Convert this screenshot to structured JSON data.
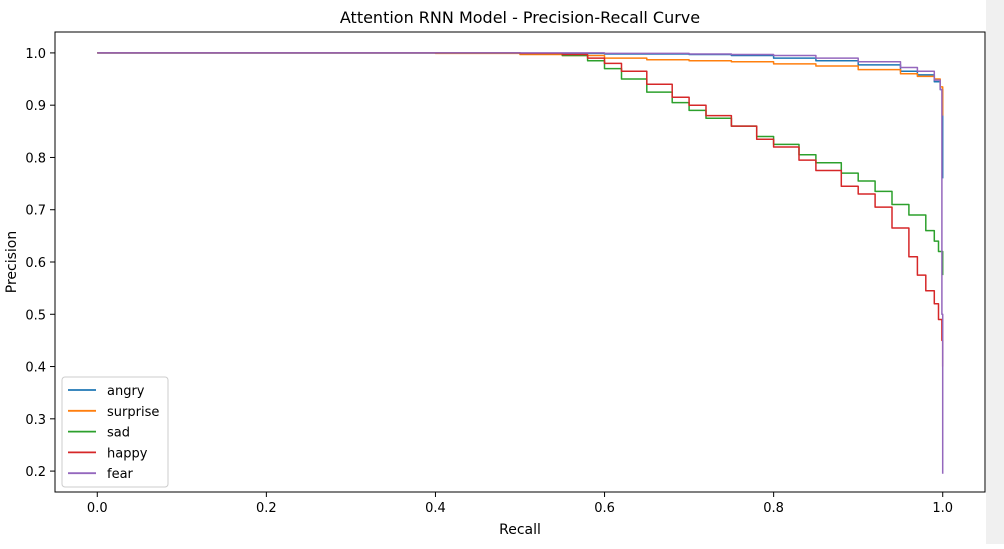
{
  "chart_data": {
    "type": "line",
    "title": "Attention RNN Model - Precision-Recall Curve",
    "xlabel": "Recall",
    "ylabel": "Precision",
    "xlim": [
      -0.05,
      1.05
    ],
    "ylim": [
      0.16,
      1.04
    ],
    "xticks": [
      0.0,
      0.2,
      0.4,
      0.6,
      0.8,
      1.0
    ],
    "yticks": [
      0.2,
      0.3,
      0.4,
      0.5,
      0.6,
      0.7,
      0.8,
      0.9,
      1.0
    ],
    "xtick_labels": [
      "0.0",
      "0.2",
      "0.4",
      "0.6",
      "0.8",
      "1.0"
    ],
    "ytick_labels": [
      "0.2",
      "0.3",
      "0.4",
      "0.5",
      "0.6",
      "0.7",
      "0.8",
      "0.9",
      "1.0"
    ],
    "legend_position": "lower-left",
    "grid": false,
    "series": [
      {
        "name": "angry",
        "color": "#1f77b4",
        "x": [
          0.0,
          0.3,
          0.5,
          0.6,
          0.7,
          0.75,
          0.8,
          0.85,
          0.9,
          0.95,
          0.97,
          0.99,
          0.997,
          1.0
        ],
        "y": [
          1.0,
          1.0,
          0.999,
          0.998,
          0.997,
          0.995,
          0.99,
          0.985,
          0.977,
          0.965,
          0.958,
          0.945,
          0.93,
          0.76
        ]
      },
      {
        "name": "surprise",
        "color": "#ff7f0e",
        "x": [
          0.0,
          0.2,
          0.4,
          0.5,
          0.55,
          0.6,
          0.65,
          0.7,
          0.75,
          0.8,
          0.85,
          0.9,
          0.95,
          0.97,
          0.99,
          0.997,
          1.0
        ],
        "y": [
          1.0,
          1.0,
          0.999,
          0.997,
          0.995,
          0.99,
          0.987,
          0.985,
          0.983,
          0.979,
          0.975,
          0.968,
          0.96,
          0.955,
          0.95,
          0.935,
          0.88
        ]
      },
      {
        "name": "sad",
        "color": "#2ca02c",
        "x": [
          0.0,
          0.3,
          0.5,
          0.55,
          0.58,
          0.6,
          0.62,
          0.65,
          0.68,
          0.7,
          0.72,
          0.75,
          0.78,
          0.8,
          0.83,
          0.85,
          0.88,
          0.9,
          0.92,
          0.94,
          0.96,
          0.98,
          0.99,
          0.995,
          1.0
        ],
        "y": [
          1.0,
          1.0,
          0.999,
          0.995,
          0.985,
          0.97,
          0.95,
          0.925,
          0.905,
          0.89,
          0.875,
          0.86,
          0.84,
          0.825,
          0.805,
          0.79,
          0.77,
          0.755,
          0.735,
          0.71,
          0.69,
          0.66,
          0.64,
          0.62,
          0.575
        ]
      },
      {
        "name": "happy",
        "color": "#d62728",
        "x": [
          0.0,
          0.3,
          0.5,
          0.55,
          0.58,
          0.6,
          0.62,
          0.65,
          0.68,
          0.7,
          0.72,
          0.75,
          0.78,
          0.8,
          0.83,
          0.85,
          0.88,
          0.9,
          0.92,
          0.94,
          0.96,
          0.97,
          0.98,
          0.99,
          0.995,
          0.999,
          1.0
        ],
        "y": [
          1.0,
          1.0,
          0.999,
          0.997,
          0.99,
          0.98,
          0.965,
          0.94,
          0.915,
          0.9,
          0.88,
          0.86,
          0.835,
          0.82,
          0.795,
          0.775,
          0.745,
          0.73,
          0.705,
          0.665,
          0.61,
          0.575,
          0.545,
          0.52,
          0.49,
          0.45,
          0.4
        ]
      },
      {
        "name": "fear",
        "color": "#9467bd",
        "x": [
          0.0,
          0.3,
          0.5,
          0.6,
          0.7,
          0.75,
          0.8,
          0.85,
          0.9,
          0.95,
          0.97,
          0.99,
          0.997,
          0.999,
          1.0,
          1.0
        ],
        "y": [
          1.0,
          1.0,
          1.0,
          0.999,
          0.998,
          0.997,
          0.995,
          0.99,
          0.983,
          0.972,
          0.965,
          0.948,
          0.93,
          0.5,
          0.25,
          0.195
        ]
      }
    ]
  }
}
